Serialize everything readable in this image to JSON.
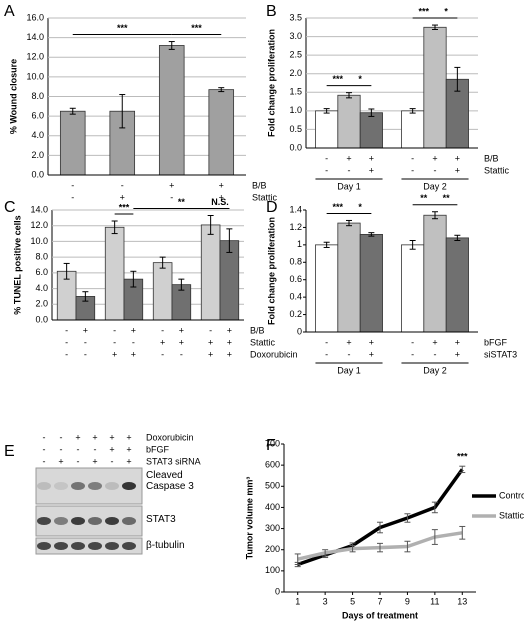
{
  "chart_data": [
    {
      "type": "bar",
      "label": "A",
      "ylabel": "% Wound closure",
      "grid": true,
      "ylim": [
        0,
        16
      ],
      "yticks": [
        {
          "value": 0,
          "label": "0.0"
        },
        {
          "value": 2,
          "label": "2.0"
        },
        {
          "value": 4,
          "label": "4.0"
        },
        {
          "value": 6,
          "label": "6.0"
        },
        {
          "value": 8,
          "label": "8.0"
        },
        {
          "value": 10,
          "label": "10.0"
        },
        {
          "value": 12,
          "label": "12.0"
        },
        {
          "value": 14,
          "label": "14.0"
        },
        {
          "value": 16,
          "label": "16.0"
        }
      ],
      "values": [
        6.5,
        6.5,
        13.2,
        8.7
      ],
      "errors": [
        0.3,
        1.7,
        0.4,
        0.2
      ],
      "colors": [
        "#a0a0a0",
        "#a0a0a0",
        "#a0a0a0",
        "#a0a0a0"
      ],
      "conditions": [
        {
          "name": "B/B",
          "signs": [
            "-",
            "-",
            "+",
            "+"
          ]
        },
        {
          "name": "Stattic",
          "signs": [
            "-",
            "+",
            "-",
            "+"
          ]
        }
      ],
      "annotations": [
        "***",
        "***"
      ]
    },
    {
      "type": "bar",
      "label": "B",
      "ylabel": "Fold change proliferation",
      "grid": true,
      "ylim": [
        0,
        3.5
      ],
      "yticks": [
        {
          "value": 0,
          "label": "0.0"
        },
        0.5,
        {
          "value": 1,
          "label": "1.0"
        },
        1.5,
        {
          "value": 2,
          "label": "2.0"
        },
        2.5,
        {
          "value": 3,
          "label": "3.0"
        },
        3.5
      ],
      "values": [
        1.0,
        1.42,
        0.95,
        1.0,
        3.25,
        1.85
      ],
      "errors": [
        0.06,
        0.07,
        0.1,
        0.06,
        0.06,
        0.32
      ],
      "colors": [
        "#ffffff",
        "#c0c0c0",
        "#707070",
        "#ffffff",
        "#c0c0c0",
        "#707070"
      ],
      "conditions": [
        {
          "name": "B/B",
          "signs": [
            "-",
            "+",
            "+",
            "-",
            "+",
            "+"
          ]
        },
        {
          "name": "Stattic",
          "signs": [
            "-",
            "-",
            "+",
            "-",
            "-",
            "+"
          ]
        }
      ],
      "groups": [
        "Day 1",
        "Day 2"
      ],
      "annotations": [
        "***",
        "*",
        "***",
        "*"
      ]
    },
    {
      "type": "bar",
      "label": "C",
      "ylabel": "% TUNEL positive cells",
      "grid": true,
      "ylim": [
        0,
        14
      ],
      "yticks": [
        {
          "value": 0,
          "label": "0.0"
        },
        {
          "value": 2,
          "label": "2.0"
        },
        {
          "value": 4,
          "label": "4.0"
        },
        {
          "value": 6,
          "label": "6.0"
        },
        {
          "value": 8,
          "label": "8.0"
        },
        {
          "value": 10,
          "label": "10.0"
        },
        {
          "value": 12,
          "label": "12.0"
        },
        {
          "value": 14,
          "label": "14.0"
        }
      ],
      "values": [
        6.2,
        3.0,
        11.8,
        5.2,
        7.3,
        4.5,
        12.1,
        10.1
      ],
      "errors": [
        1.0,
        0.6,
        0.8,
        1.0,
        0.7,
        0.7,
        1.2,
        1.5
      ],
      "colors": [
        "#d0d0d0",
        "#707070",
        "#d0d0d0",
        "#707070",
        "#d0d0d0",
        "#707070",
        "#d0d0d0",
        "#707070"
      ],
      "conditions": [
        {
          "name": "B/B",
          "signs": [
            "-",
            "+",
            "-",
            "+",
            "-",
            "+",
            "-",
            "+"
          ]
        },
        {
          "name": "Stattic",
          "signs": [
            "-",
            "-",
            "-",
            "-",
            "+",
            "+",
            "+",
            "+"
          ]
        },
        {
          "name": "Doxorubicin",
          "signs": [
            "-",
            "-",
            "+",
            "+",
            "-",
            "-",
            "+",
            "+"
          ]
        }
      ],
      "annotations": [
        "***",
        "**",
        "N.S."
      ]
    },
    {
      "type": "bar",
      "label": "D",
      "ylabel": "Fold change proliferation",
      "grid": false,
      "ylim": [
        0,
        1.4
      ],
      "yticks": [
        0,
        0.2,
        0.4,
        0.6,
        0.8,
        1,
        1.2,
        1.4
      ],
      "values": [
        1.0,
        1.25,
        1.12,
        1.0,
        1.34,
        1.08
      ],
      "errors": [
        0.03,
        0.03,
        0.02,
        0.05,
        0.04,
        0.03
      ],
      "colors": [
        "#ffffff",
        "#c0c0c0",
        "#707070",
        "#ffffff",
        "#c0c0c0",
        "#707070"
      ],
      "conditions": [
        {
          "name": "bFGF",
          "signs": [
            "-",
            "+",
            "+",
            "-",
            "+",
            "+"
          ]
        },
        {
          "name": "siSTAT3",
          "signs": [
            "-",
            "-",
            "+",
            "-",
            "-",
            "+"
          ]
        }
      ],
      "groups": [
        "Day 1",
        "Day 2"
      ],
      "annotations": [
        "***",
        "*",
        "**",
        "**"
      ]
    },
    {
      "type": "blot",
      "label": "E",
      "conditions": [
        {
          "name": "Doxorubicin",
          "signs": [
            "-",
            "-",
            "+",
            "+",
            "+",
            "+"
          ]
        },
        {
          "name": "bFGF",
          "signs": [
            "-",
            "-",
            "-",
            "-",
            "+",
            "+"
          ]
        },
        {
          "name": "STAT3 siRNA",
          "signs": [
            "-",
            "+",
            "-",
            "+",
            "-",
            "+"
          ]
        }
      ],
      "bands": [
        "Cleaved Caspase 3",
        "STAT3",
        "β-tubulin"
      ]
    },
    {
      "type": "line",
      "label": "F",
      "ylabel": "Tumor volume mm³",
      "xlabel": "Days of treatment",
      "xlim": [
        0,
        14
      ],
      "xticks": [
        1,
        3,
        5,
        7,
        9,
        11,
        13
      ],
      "ylim": [
        0,
        700
      ],
      "yticks": [
        0,
        100,
        200,
        300,
        400,
        500,
        600,
        700
      ],
      "x": [
        1,
        3,
        5,
        7,
        9,
        11,
        13
      ],
      "series": [
        {
          "name": "Control",
          "color": "#000000",
          "values": [
            130,
            175,
            220,
            305,
            350,
            400,
            580
          ],
          "errors": [
            10,
            12,
            12,
            25,
            20,
            25,
            15
          ]
        },
        {
          "name": "Stattic",
          "color": "#b0b0b0",
          "values": [
            155,
            185,
            205,
            210,
            215,
            260,
            280
          ],
          "errors": [
            25,
            15,
            15,
            20,
            25,
            35,
            30
          ]
        }
      ],
      "legend": "right",
      "annotations": [
        "***"
      ]
    }
  ]
}
